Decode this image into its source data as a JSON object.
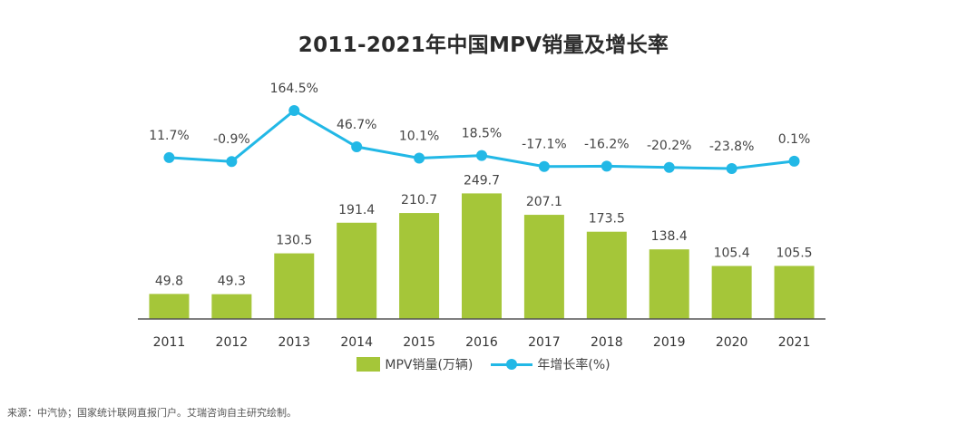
{
  "chart_data": {
    "type": "bar",
    "title": "2011-2021年中国MPV销量及增长率",
    "categories": [
      "2011",
      "2012",
      "2013",
      "2014",
      "2015",
      "2016",
      "2017",
      "2018",
      "2019",
      "2020",
      "2021"
    ],
    "series": [
      {
        "name": "MPV销量(万辆)",
        "type": "bar",
        "color": "#a5c639",
        "values": [
          49.8,
          49.3,
          130.5,
          191.4,
          210.7,
          249.7,
          207.1,
          173.5,
          138.4,
          105.4,
          105.5
        ],
        "labels": [
          "49.8",
          "49.3",
          "130.5",
          "191.4",
          "210.7",
          "249.7",
          "207.1",
          "173.5",
          "138.4",
          "105.4",
          "105.5"
        ]
      },
      {
        "name": "年增长率(%)",
        "type": "line",
        "color": "#22b8e6",
        "values": [
          11.7,
          -0.9,
          164.5,
          46.7,
          10.1,
          18.5,
          -17.1,
          -16.2,
          -20.2,
          -23.8,
          0.1
        ],
        "labels": [
          "11.7%",
          "-0.9%",
          "164.5%",
          "46.7%",
          "10.1%",
          "18.5%",
          "-17.1%",
          "-16.2%",
          "-20.2%",
          "-23.8%",
          "0.1%"
        ]
      }
    ],
    "grid": false,
    "legend_position": "bottom"
  },
  "source": "来源：中汽协；国家统计联网直报门户。艾瑞咨询自主研究绘制。"
}
